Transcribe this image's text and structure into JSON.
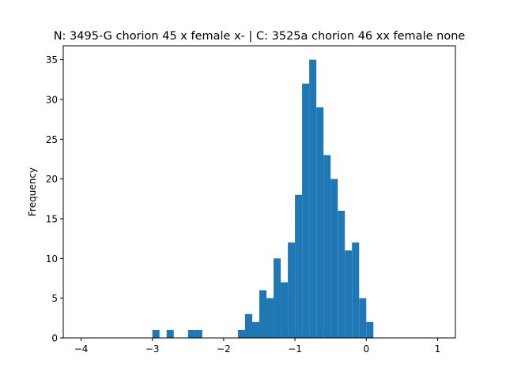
{
  "chart_data": {
    "type": "bar",
    "subtype": "histogram",
    "title": "N: 3495-G chorion 45 x female x- | C: 3525a chorion 46 xx female none",
    "xlabel": "",
    "ylabel": "Frequency",
    "xlim": [
      -4.25,
      1.25
    ],
    "ylim": [
      0,
      36.75
    ],
    "xticks": [
      -4,
      -3,
      -2,
      -1,
      0,
      1
    ],
    "yticks": [
      0,
      5,
      10,
      15,
      20,
      25,
      30,
      35
    ],
    "bar_color": "#1f77b4",
    "grid": false,
    "bins": [
      {
        "x0": -3.0,
        "x1": -2.9,
        "count": 1
      },
      {
        "x0": -2.8,
        "x1": -2.7,
        "count": 1
      },
      {
        "x0": -2.5,
        "x1": -2.4,
        "count": 1
      },
      {
        "x0": -2.4,
        "x1": -2.3,
        "count": 1
      },
      {
        "x0": -1.8,
        "x1": -1.7,
        "count": 1
      },
      {
        "x0": -1.7,
        "x1": -1.6,
        "count": 3
      },
      {
        "x0": -1.6,
        "x1": -1.5,
        "count": 2
      },
      {
        "x0": -1.5,
        "x1": -1.4,
        "count": 6
      },
      {
        "x0": -1.4,
        "x1": -1.3,
        "count": 5
      },
      {
        "x0": -1.3,
        "x1": -1.2,
        "count": 10
      },
      {
        "x0": -1.2,
        "x1": -1.1,
        "count": 7
      },
      {
        "x0": -1.1,
        "x1": -1.0,
        "count": 12
      },
      {
        "x0": -1.0,
        "x1": -0.9,
        "count": 18
      },
      {
        "x0": -0.9,
        "x1": -0.8,
        "count": 32
      },
      {
        "x0": -0.8,
        "x1": -0.7,
        "count": 35
      },
      {
        "x0": -0.7,
        "x1": -0.6,
        "count": 29
      },
      {
        "x0": -0.6,
        "x1": -0.5,
        "count": 23
      },
      {
        "x0": -0.5,
        "x1": -0.4,
        "count": 20
      },
      {
        "x0": -0.4,
        "x1": -0.3,
        "count": 16
      },
      {
        "x0": -0.3,
        "x1": -0.2,
        "count": 11
      },
      {
        "x0": -0.2,
        "x1": -0.1,
        "count": 12
      },
      {
        "x0": -0.1,
        "x1": 0.0,
        "count": 5
      },
      {
        "x0": 0.0,
        "x1": 0.1,
        "count": 2
      }
    ]
  }
}
